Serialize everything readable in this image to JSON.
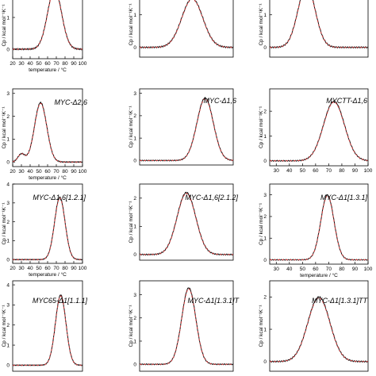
{
  "figure": {
    "colors": {
      "experimental": "#111111",
      "fit": "#d23c3c",
      "axis": "#000000"
    }
  },
  "chart_data": [
    {
      "type": "line",
      "title": "",
      "xlabel": "temperature / °C",
      "ylabel": "Cp / kcal mol⁻¹K⁻¹",
      "x_ticks": [
        20,
        30,
        40,
        50,
        60,
        70,
        80,
        90,
        100
      ],
      "y_ticks": [
        0,
        1
      ],
      "xlim": [
        20,
        100
      ],
      "ylim": [
        -0.3,
        1.8
      ],
      "series": [
        {
          "peak_x": 68,
          "peak_y": 1.9,
          "width": 8,
          "baseline_dip": 0
        }
      ]
    },
    {
      "type": "line",
      "title": "",
      "xlabel": "",
      "ylabel": "Cp / kcal mol⁻¹K⁻¹",
      "x_ticks": [],
      "y_ticks": [
        0,
        1
      ],
      "xlim": [
        20,
        100
      ],
      "ylim": [
        -0.3,
        1.7
      ],
      "series": [
        {
          "peak_x": 65,
          "peak_y": 1.5,
          "width": 9,
          "baseline_dip": 0
        }
      ]
    },
    {
      "type": "line",
      "title": "",
      "xlabel": "",
      "ylabel": "Cp / kcal mol⁻¹K⁻¹",
      "x_ticks": [],
      "y_ticks": [
        0,
        1
      ],
      "xlim": [
        20,
        100
      ],
      "ylim": [
        -0.3,
        1.7
      ],
      "series": [
        {
          "peak_x": 50,
          "peak_y": 1.9,
          "width": 7,
          "baseline_dip": 0
        }
      ]
    },
    {
      "type": "line",
      "title": "MYC-Δ2,6",
      "xlabel": "temperature / °C",
      "ylabel": "Cp / kcal mol⁻¹K⁻¹",
      "x_ticks": [
        20,
        30,
        40,
        50,
        60,
        70,
        80,
        90,
        100
      ],
      "y_ticks": [
        0,
        1,
        2,
        3
      ],
      "xlim": [
        20,
        100
      ],
      "ylim": [
        -0.2,
        3.2
      ],
      "series": [
        {
          "peak_x": 52,
          "peak_y": 2.6,
          "width": 7,
          "baseline_dip": 0.35
        }
      ]
    },
    {
      "type": "line",
      "title": "MYC-Δ1,6",
      "xlabel": "",
      "ylabel": "Cp / kcal mol⁻¹K⁻¹",
      "x_ticks": [],
      "y_ticks": [
        0,
        1,
        2,
        3
      ],
      "xlim": [
        20,
        100
      ],
      "ylim": [
        -0.2,
        3.2
      ],
      "series": [
        {
          "peak_x": 76,
          "peak_y": 2.8,
          "width": 7,
          "baseline_dip": 0
        }
      ]
    },
    {
      "type": "line",
      "title": "MYCTT-Δ1,6",
      "xlabel": "",
      "ylabel": "Cp / kcal mol⁻¹K⁻¹",
      "x_ticks": [
        30,
        40,
        50,
        60,
        70,
        80,
        90,
        100
      ],
      "y_ticks": [
        0,
        1,
        2
      ],
      "xlim": [
        25,
        100
      ],
      "ylim": [
        -0.2,
        2.9
      ],
      "series": [
        {
          "peak_x": 74,
          "peak_y": 2.4,
          "width": 8,
          "baseline_dip": 0
        }
      ]
    },
    {
      "type": "line",
      "title": "MYC-Δ1,6[1.2.1]",
      "xlabel": "temperature / °C",
      "ylabel": "Cp / kcal mol⁻¹K⁻¹",
      "x_ticks": [
        20,
        30,
        40,
        50,
        60,
        70,
        80,
        90,
        100
      ],
      "y_ticks": [
        0,
        1,
        2,
        3,
        4
      ],
      "xlim": [
        20,
        100
      ],
      "ylim": [
        -0.2,
        4.0
      ],
      "series": [
        {
          "peak_x": 74,
          "peak_y": 3.3,
          "width": 6,
          "baseline_dip": 0
        }
      ]
    },
    {
      "type": "line",
      "title": "MYC-Δ1,6[2.1.2]",
      "xlabel": "",
      "ylabel": "Cp / kcal mol⁻¹K⁻¹",
      "x_ticks": [],
      "y_ticks": [
        0,
        1,
        2
      ],
      "xlim": [
        20,
        100
      ],
      "ylim": [
        -0.2,
        2.5
      ],
      "series": [
        {
          "peak_x": 60,
          "peak_y": 2.2,
          "width": 8,
          "baseline_dip": 0
        }
      ]
    },
    {
      "type": "line",
      "title": "MYC-Δ1[1.3.1]",
      "xlabel": "temperature / °C",
      "ylabel": "Cp / kcal mol⁻¹K⁻¹",
      "x_ticks": [
        30,
        40,
        50,
        60,
        70,
        80,
        90,
        100
      ],
      "y_ticks": [
        0,
        1,
        2,
        3
      ],
      "xlim": [
        25,
        100
      ],
      "ylim": [
        -0.2,
        3.5
      ],
      "series": [
        {
          "peak_x": 69,
          "peak_y": 3.0,
          "width": 5,
          "baseline_dip": 0
        }
      ]
    },
    {
      "type": "line",
      "title": "MYC65-Δ1[1.1.1]",
      "xlabel": "",
      "ylabel": "Cp / kcal mol⁻¹K⁻¹",
      "x_ticks": [],
      "y_ticks": [
        0,
        1,
        2,
        3,
        4
      ],
      "xlim": [
        20,
        100
      ],
      "ylim": [
        -0.3,
        4.2
      ],
      "series": [
        {
          "peak_x": 75,
          "peak_y": 3.5,
          "width": 6,
          "baseline_dip": 0
        }
      ]
    },
    {
      "type": "line",
      "title": "MYC-Δ1[1.3.1]T",
      "xlabel": "",
      "ylabel": "Cp / kcal mol⁻¹K⁻¹",
      "x_ticks": [],
      "y_ticks": [
        0,
        1,
        2,
        3
      ],
      "xlim": [
        20,
        100
      ],
      "ylim": [
        -0.3,
        3.6
      ],
      "series": [
        {
          "peak_x": 62,
          "peak_y": 3.3,
          "width": 6,
          "baseline_dip": 0
        }
      ]
    },
    {
      "type": "line",
      "title": "MYC-Δ1[1.3.1]TT",
      "xlabel": "",
      "ylabel": "Cp / kcal mol⁻¹K⁻¹",
      "x_ticks": [],
      "y_ticks": [
        0,
        1,
        2
      ],
      "xlim": [
        20,
        100
      ],
      "ylim": [
        -0.3,
        2.5
      ],
      "series": [
        {
          "peak_x": 60,
          "peak_y": 2.0,
          "width": 9,
          "baseline_dip": 0
        }
      ]
    }
  ]
}
